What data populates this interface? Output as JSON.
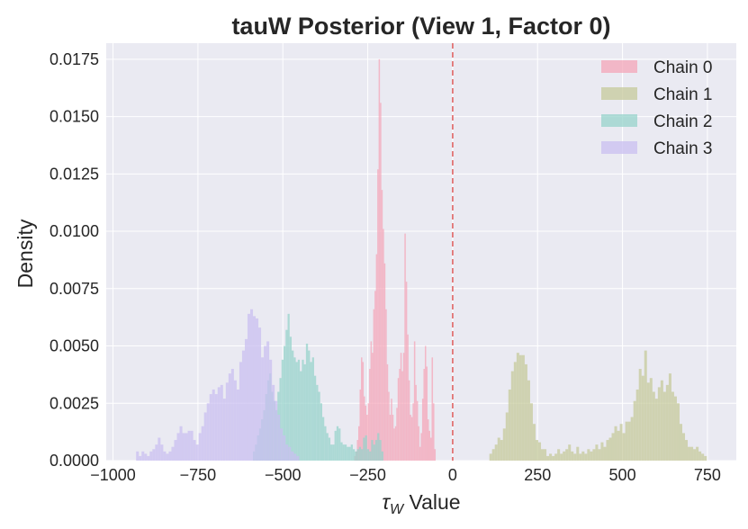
{
  "chart_data": {
    "type": "bar",
    "title": "tauW Posterior (View 1, Factor 0)",
    "xlabel_symbol": "τ",
    "xlabel_subscript": "W",
    "xlabel_rest": " Value",
    "ylabel": "Density",
    "xlim": [
      -1020,
      835
    ],
    "ylim": [
      0,
      0.0182
    ],
    "x_ticks": [
      -1000,
      -750,
      -500,
      -250,
      0,
      250,
      500,
      750
    ],
    "x_tick_labels": [
      "−1000",
      "−750",
      "−500",
      "−250",
      "0",
      "250",
      "500",
      "750"
    ],
    "y_ticks": [
      0,
      0.0025,
      0.005,
      0.0075,
      0.01,
      0.0125,
      0.015,
      0.0175
    ],
    "y_tick_labels": [
      "0.0000",
      "0.0025",
      "0.0050",
      "0.0075",
      "0.0100",
      "0.0125",
      "0.0150",
      "0.0175"
    ],
    "grid": true,
    "legend_position": "top-right",
    "reference_line": {
      "x": 0,
      "color": "#e06666",
      "style": "dashed"
    },
    "series": [
      {
        "name": "Chain 0",
        "color": "#f4a6b8",
        "bin_width": 4,
        "bins": [
          [
            -290,
            0.0002
          ],
          [
            -286,
            0.0004
          ],
          [
            -282,
            0.0009
          ],
          [
            -278,
            0.0015
          ],
          [
            -274,
            0.0031
          ],
          [
            -270,
            0.0045
          ],
          [
            -266,
            0.0043
          ],
          [
            -262,
            0.0028
          ],
          [
            -258,
            0.0024
          ],
          [
            -254,
            0.002
          ],
          [
            -250,
            0.0025
          ],
          [
            -246,
            0.004
          ],
          [
            -242,
            0.0052
          ],
          [
            -238,
            0.0047
          ],
          [
            -234,
            0.0066
          ],
          [
            -230,
            0.0074
          ],
          [
            -226,
            0.009
          ],
          [
            -222,
            0.0127
          ],
          [
            -218,
            0.0175
          ],
          [
            -214,
            0.0156
          ],
          [
            -210,
            0.0118
          ],
          [
            -206,
            0.0101
          ],
          [
            -202,
            0.0086
          ],
          [
            -198,
            0.0066
          ],
          [
            -194,
            0.0042
          ],
          [
            -190,
            0.003
          ],
          [
            -186,
            0.002
          ],
          [
            -182,
            0.0027
          ],
          [
            -178,
            0.002
          ],
          [
            -174,
            0.0014
          ],
          [
            -170,
            0.0015
          ],
          [
            -166,
            0.0023
          ],
          [
            -162,
            0.0036
          ],
          [
            -158,
            0.004
          ],
          [
            -154,
            0.0047
          ],
          [
            -150,
            0.0039
          ],
          [
            -146,
            0.0047
          ],
          [
            -142,
            0.0099
          ],
          [
            -138,
            0.0078
          ],
          [
            -134,
            0.0055
          ],
          [
            -130,
            0.0035
          ],
          [
            -126,
            0.002
          ],
          [
            -122,
            0.0019
          ],
          [
            -118,
            0.0025
          ],
          [
            -114,
            0.0052
          ],
          [
            -110,
            0.0033
          ],
          [
            -106,
            0.0026
          ],
          [
            -102,
            0.0015
          ],
          [
            -98,
            0.0006
          ],
          [
            -94,
            0.0012
          ],
          [
            -90,
            0.0027
          ],
          [
            -86,
            0.004
          ],
          [
            -82,
            0.005
          ],
          [
            -78,
            0.0041
          ],
          [
            -74,
            0.0018
          ],
          [
            -70,
            0.0013
          ],
          [
            -66,
            0.001
          ],
          [
            -62,
            0.0045
          ],
          [
            -58,
            0.0025
          ],
          [
            -54,
            0.0005
          ]
        ]
      },
      {
        "name": "Chain 1",
        "color": "#c5c99b",
        "bin_width": 8,
        "bins": [
          [
            108,
            0.0003
          ],
          [
            116,
            0.0005
          ],
          [
            124,
            0.0007
          ],
          [
            132,
            0.001
          ],
          [
            140,
            0.0009
          ],
          [
            148,
            0.0014
          ],
          [
            156,
            0.0021
          ],
          [
            164,
            0.0031
          ],
          [
            172,
            0.0039
          ],
          [
            180,
            0.0043
          ],
          [
            188,
            0.0047
          ],
          [
            196,
            0.0046
          ],
          [
            204,
            0.0046
          ],
          [
            212,
            0.0042
          ],
          [
            220,
            0.0035
          ],
          [
            228,
            0.0025
          ],
          [
            236,
            0.0016
          ],
          [
            244,
            0.0009
          ],
          [
            252,
            0.0008
          ],
          [
            260,
            0.0005
          ],
          [
            268,
            0.0005
          ],
          [
            276,
            0.0002
          ],
          [
            284,
            0.0003
          ],
          [
            292,
            0.0002
          ],
          [
            300,
            0.0003
          ],
          [
            308,
            0.0005
          ],
          [
            316,
            0.0003
          ],
          [
            324,
            0.0004
          ],
          [
            332,
            0.0005
          ],
          [
            340,
            0.0007
          ],
          [
            348,
            0.0004
          ],
          [
            356,
            0.0003
          ],
          [
            364,
            0.0006
          ],
          [
            372,
            0.0003
          ],
          [
            380,
            0.0004
          ],
          [
            388,
            0.0003
          ],
          [
            396,
            0.0005
          ],
          [
            404,
            0.0004
          ],
          [
            412,
            0.0005
          ],
          [
            420,
            0.0007
          ],
          [
            428,
            0.0005
          ],
          [
            436,
            0.0008
          ],
          [
            444,
            0.0006
          ],
          [
            452,
            0.0009
          ],
          [
            460,
            0.001
          ],
          [
            468,
            0.0012
          ],
          [
            476,
            0.0015
          ],
          [
            484,
            0.0013
          ],
          [
            492,
            0.0016
          ],
          [
            500,
            0.0012
          ],
          [
            508,
            0.0017
          ],
          [
            516,
            0.0017
          ],
          [
            524,
            0.0019
          ],
          [
            532,
            0.0026
          ],
          [
            540,
            0.0031
          ],
          [
            548,
            0.004
          ],
          [
            556,
            0.0037
          ],
          [
            564,
            0.0048
          ],
          [
            572,
            0.0034
          ],
          [
            580,
            0.0036
          ],
          [
            588,
            0.003
          ],
          [
            596,
            0.0027
          ],
          [
            604,
            0.0032
          ],
          [
            612,
            0.0035
          ],
          [
            620,
            0.003
          ],
          [
            628,
            0.0033
          ],
          [
            636,
            0.0038
          ],
          [
            644,
            0.003
          ],
          [
            652,
            0.0028
          ],
          [
            660,
            0.0025
          ],
          [
            668,
            0.0016
          ],
          [
            676,
            0.0012
          ],
          [
            684,
            0.0009
          ],
          [
            692,
            0.0006
          ],
          [
            700,
            0.0006
          ],
          [
            708,
            0.0005
          ],
          [
            716,
            0.0006
          ],
          [
            724,
            0.0004
          ],
          [
            732,
            0.0003
          ],
          [
            740,
            0.0002
          ]
        ]
      },
      {
        "name": "Chain 2",
        "color": "#97d3cb",
        "bin_width": 6,
        "bins": [
          [
            -588,
            0.0004
          ],
          [
            -582,
            0.0007
          ],
          [
            -576,
            0.0011
          ],
          [
            -570,
            0.0014
          ],
          [
            -564,
            0.0018
          ],
          [
            -558,
            0.0022
          ],
          [
            -552,
            0.0029
          ],
          [
            -546,
            0.0035
          ],
          [
            -540,
            0.0038
          ],
          [
            -534,
            0.003
          ],
          [
            -528,
            0.0026
          ],
          [
            -522,
            0.0022
          ],
          [
            -516,
            0.003
          ],
          [
            -510,
            0.0036
          ],
          [
            -504,
            0.0044
          ],
          [
            -498,
            0.005
          ],
          [
            -492,
            0.0057
          ],
          [
            -486,
            0.0064
          ],
          [
            -480,
            0.0054
          ],
          [
            -474,
            0.0048
          ],
          [
            -468,
            0.0045
          ],
          [
            -462,
            0.0043
          ],
          [
            -456,
            0.0044
          ],
          [
            -450,
            0.0039
          ],
          [
            -444,
            0.0044
          ],
          [
            -438,
            0.0042
          ],
          [
            -432,
            0.0051
          ],
          [
            -426,
            0.0048
          ],
          [
            -420,
            0.0043
          ],
          [
            -414,
            0.0045
          ],
          [
            -408,
            0.0037
          ],
          [
            -402,
            0.0033
          ],
          [
            -396,
            0.003
          ],
          [
            -390,
            0.0025
          ],
          [
            -384,
            0.0019
          ],
          [
            -378,
            0.0015
          ],
          [
            -372,
            0.0012
          ],
          [
            -366,
            0.001
          ],
          [
            -360,
            0.0007
          ],
          [
            -354,
            0.0007
          ],
          [
            -348,
            0.0013
          ],
          [
            -342,
            0.0015
          ],
          [
            -336,
            0.0014
          ],
          [
            -330,
            0.0008
          ],
          [
            -324,
            0.0007
          ],
          [
            -318,
            0.0007
          ],
          [
            -312,
            0.0006
          ],
          [
            -306,
            0.0006
          ],
          [
            -300,
            0.0007
          ],
          [
            -294,
            0.0005
          ],
          [
            -288,
            0.0004
          ],
          [
            -282,
            0.0005
          ],
          [
            -276,
            0.0006
          ],
          [
            -270,
            0.0005
          ],
          [
            -264,
            0.001
          ],
          [
            -258,
            0.0011
          ],
          [
            -252,
            0.0005
          ],
          [
            -246,
            0.0004
          ],
          [
            -240,
            0.0009
          ],
          [
            -234,
            0.0007
          ],
          [
            -228,
            0.0009
          ],
          [
            -222,
            0.0012
          ],
          [
            -216,
            0.0009
          ],
          [
            -210,
            0.0004
          ]
        ]
      },
      {
        "name": "Chain 3",
        "color": "#c9bff0",
        "bin_width": 8,
        "bins": [
          [
            -932,
            0.0004
          ],
          [
            -924,
            0.0002
          ],
          [
            -916,
            0.0004
          ],
          [
            -908,
            0.0003
          ],
          [
            -900,
            0.0002
          ],
          [
            -892,
            0.0004
          ],
          [
            -884,
            0.0005
          ],
          [
            -876,
            0.0007
          ],
          [
            -868,
            0.001
          ],
          [
            -860,
            0.0007
          ],
          [
            -852,
            0.0004
          ],
          [
            -844,
            0.0003
          ],
          [
            -836,
            0.0004
          ],
          [
            -828,
            0.0006
          ],
          [
            -820,
            0.0009
          ],
          [
            -812,
            0.0012
          ],
          [
            -804,
            0.0015
          ],
          [
            -796,
            0.0012
          ],
          [
            -788,
            0.0012
          ],
          [
            -780,
            0.0013
          ],
          [
            -772,
            0.0013
          ],
          [
            -764,
            0.0009
          ],
          [
            -756,
            0.0007
          ],
          [
            -748,
            0.0012
          ],
          [
            -740,
            0.0015
          ],
          [
            -732,
            0.0021
          ],
          [
            -724,
            0.0025
          ],
          [
            -716,
            0.0029
          ],
          [
            -708,
            0.0031
          ],
          [
            -700,
            0.0029
          ],
          [
            -692,
            0.0032
          ],
          [
            -684,
            0.0033
          ],
          [
            -676,
            0.0027
          ],
          [
            -668,
            0.0034
          ],
          [
            -660,
            0.0038
          ],
          [
            -652,
            0.004
          ],
          [
            -644,
            0.0035
          ],
          [
            -636,
            0.0031
          ],
          [
            -628,
            0.0043
          ],
          [
            -620,
            0.0048
          ],
          [
            -612,
            0.0053
          ],
          [
            -604,
            0.0064
          ],
          [
            -596,
            0.0066
          ],
          [
            -588,
            0.0063
          ],
          [
            -580,
            0.0062
          ],
          [
            -572,
            0.0058
          ],
          [
            -564,
            0.0045
          ],
          [
            -556,
            0.005
          ],
          [
            -548,
            0.0052
          ],
          [
            -540,
            0.0044
          ],
          [
            -532,
            0.0033
          ],
          [
            -524,
            0.0026
          ],
          [
            -516,
            0.002
          ],
          [
            -508,
            0.0014
          ],
          [
            -500,
            0.0011
          ],
          [
            -492,
            0.0007
          ],
          [
            -484,
            0.0006
          ],
          [
            -476,
            0.0004
          ],
          [
            -468,
            0.0003
          ],
          [
            -460,
            0.0002
          ]
        ]
      }
    ]
  }
}
